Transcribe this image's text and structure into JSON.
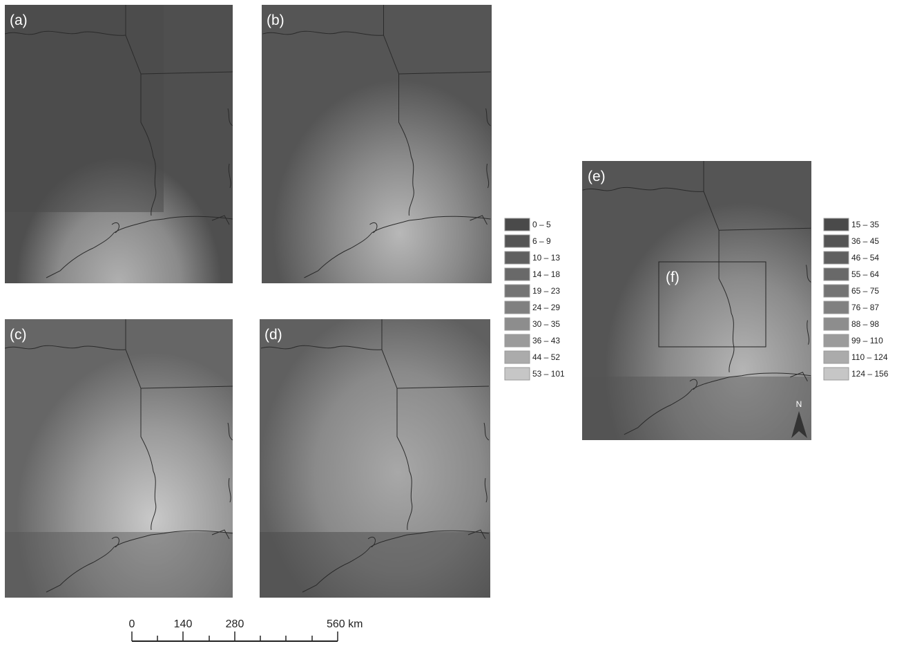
{
  "panels": [
    {
      "label": "(a)"
    },
    {
      "label": "(b)"
    },
    {
      "label": "(c)"
    },
    {
      "label": "(d)"
    },
    {
      "label": "(e)"
    }
  ],
  "inset_label": "(f)",
  "legend_1": [
    {
      "label": "0 – 5",
      "color": "#4a4a4a"
    },
    {
      "label": "6 – 9",
      "color": "#555555"
    },
    {
      "label": "10 – 13",
      "color": "#5f5f5f"
    },
    {
      "label": "14 – 18",
      "color": "#696969"
    },
    {
      "label": "19 – 23",
      "color": "#747474"
    },
    {
      "label": "24 – 29",
      "color": "#808080"
    },
    {
      "label": "30 – 35",
      "color": "#8d8d8d"
    },
    {
      "label": "36 – 43",
      "color": "#9b9b9b"
    },
    {
      "label": "44 – 52",
      "color": "#ababab"
    },
    {
      "label": "53 – 101",
      "color": "#c6c6c6"
    }
  ],
  "legend_2": [
    {
      "label": "15 – 35",
      "color": "#4a4a4a"
    },
    {
      "label": "36 – 45",
      "color": "#555555"
    },
    {
      "label": "46 – 54",
      "color": "#5f5f5f"
    },
    {
      "label": "55 – 64",
      "color": "#696969"
    },
    {
      "label": "65 – 75",
      "color": "#747474"
    },
    {
      "label": "76 – 87",
      "color": "#808080"
    },
    {
      "label": "88 – 98",
      "color": "#8d8d8d"
    },
    {
      "label": "99 – 110",
      "color": "#9b9b9b"
    },
    {
      "label": "110 – 124",
      "color": "#ababab"
    },
    {
      "label": "124 – 156",
      "color": "#c6c6c6"
    }
  ],
  "north_arrow": "N",
  "scale_bar": [
    "0",
    "140",
    "280",
    "560 km"
  ]
}
